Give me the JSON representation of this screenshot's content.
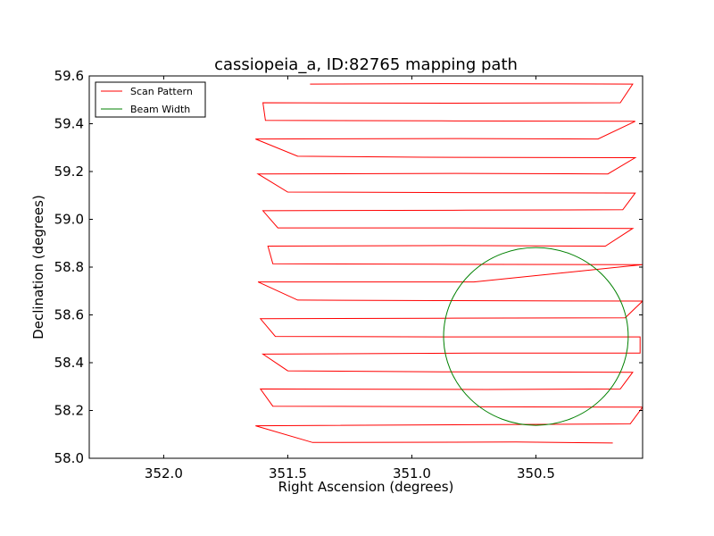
{
  "chart_data": {
    "type": "line",
    "title": "cassiopeia_a, ID:82765 mapping path",
    "xlabel": "Right Ascension (degrees)",
    "ylabel": "Declination (degrees)",
    "xlim": [
      352.3,
      350.07
    ],
    "ylim": [
      58.0,
      59.6
    ],
    "x_ticks": [
      352.0,
      351.5,
      351.0,
      350.5
    ],
    "x_tick_labels": [
      "352.0",
      "351.5",
      "351.0",
      "350.5"
    ],
    "y_ticks": [
      58.0,
      58.2,
      58.4,
      58.6,
      58.8,
      59.0,
      59.2,
      59.4,
      59.6
    ],
    "y_tick_labels": [
      "58.0",
      "58.2",
      "58.4",
      "58.6",
      "58.8",
      "59.0",
      "59.2",
      "59.4",
      "59.6"
    ],
    "grid": false,
    "legend_placement": "top-left",
    "series": [
      {
        "name": "Scan Pattern",
        "color": "#ff0000",
        "kind": "path",
        "points": [
          [
            350.19,
            58.064
          ],
          [
            350.58,
            58.068
          ],
          [
            351.4,
            58.066
          ],
          [
            351.63,
            58.136
          ],
          [
            350.45,
            58.142
          ],
          [
            350.12,
            58.144
          ],
          [
            350.07,
            58.214
          ],
          [
            350.85,
            58.216
          ],
          [
            351.56,
            58.218
          ],
          [
            351.61,
            58.29
          ],
          [
            350.7,
            58.288
          ],
          [
            350.16,
            58.29
          ],
          [
            350.11,
            58.36
          ],
          [
            350.88,
            58.362
          ],
          [
            351.5,
            58.366
          ],
          [
            351.6,
            58.436
          ],
          [
            350.74,
            58.44
          ],
          [
            350.08,
            58.44
          ],
          [
            350.08,
            58.508
          ],
          [
            350.9,
            58.508
          ],
          [
            351.55,
            58.51
          ],
          [
            351.61,
            58.584
          ],
          [
            350.88,
            58.586
          ],
          [
            350.14,
            58.588
          ],
          [
            350.07,
            58.658
          ],
          [
            350.9,
            58.66
          ],
          [
            351.46,
            58.662
          ],
          [
            351.62,
            58.738
          ],
          [
            350.75,
            58.738
          ],
          [
            350.07,
            58.81
          ],
          [
            350.9,
            58.812
          ],
          [
            351.56,
            58.814
          ],
          [
            351.58,
            58.888
          ],
          [
            350.82,
            58.89
          ],
          [
            350.22,
            58.888
          ],
          [
            350.11,
            58.962
          ],
          [
            350.88,
            58.964
          ],
          [
            351.54,
            58.964
          ],
          [
            351.6,
            59.036
          ],
          [
            350.78,
            59.038
          ],
          [
            350.15,
            59.04
          ],
          [
            350.1,
            59.11
          ],
          [
            350.92,
            59.112
          ],
          [
            351.5,
            59.114
          ],
          [
            351.62,
            59.19
          ],
          [
            350.82,
            59.192
          ],
          [
            350.21,
            59.19
          ],
          [
            350.1,
            59.258
          ],
          [
            350.95,
            59.26
          ],
          [
            351.46,
            59.264
          ],
          [
            351.63,
            59.336
          ],
          [
            350.8,
            59.338
          ],
          [
            350.25,
            59.336
          ],
          [
            350.1,
            59.41
          ],
          [
            350.88,
            59.412
          ],
          [
            351.59,
            59.414
          ],
          [
            351.6,
            59.488
          ],
          [
            350.86,
            59.486
          ],
          [
            350.16,
            59.488
          ],
          [
            350.11,
            59.566
          ],
          [
            350.88,
            59.568
          ],
          [
            351.41,
            59.566
          ]
        ]
      },
      {
        "name": "Beam Width",
        "color": "#008000",
        "kind": "circle",
        "center": [
          350.5,
          58.51
        ],
        "radius_deg": 0.372
      }
    ]
  }
}
